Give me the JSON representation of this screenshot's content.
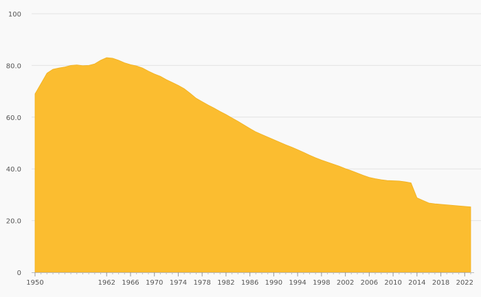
{
  "chart_data": {
    "type": "area",
    "title": "",
    "xlabel": "",
    "ylabel": "",
    "color": "#fbbd30",
    "grid": true,
    "legend": "none",
    "xlim": [
      1950,
      2023
    ],
    "ylim": [
      0,
      100
    ],
    "x_ticks": [
      1950,
      1962,
      1966,
      1970,
      1974,
      1978,
      1982,
      1986,
      1990,
      1994,
      1998,
      2002,
      2006,
      2010,
      2014,
      2018,
      2022
    ],
    "y_ticks": [
      {
        "value": 0,
        "label": "0"
      },
      {
        "value": 20,
        "label": "20.0"
      },
      {
        "value": 40,
        "label": "40.0"
      },
      {
        "value": 60,
        "label": "60.0"
      },
      {
        "value": 80,
        "label": "80.0"
      },
      {
        "value": 100,
        "label": "100"
      }
    ],
    "series": [
      {
        "x": [
          1950,
          1951,
          1952,
          1953,
          1954,
          1955,
          1956,
          1957,
          1958,
          1959,
          1960,
          1961,
          1962,
          1963,
          1964,
          1965,
          1966,
          1967,
          1968,
          1969,
          1970,
          1971,
          1972,
          1973,
          1974,
          1975,
          1976,
          1977,
          1978,
          1979,
          1980,
          1981,
          1982,
          1983,
          1984,
          1985,
          1986,
          1987,
          1988,
          1989,
          1990,
          1991,
          1992,
          1993,
          1994,
          1995,
          1996,
          1997,
          1998,
          1999,
          2000,
          2001,
          2002,
          2003,
          2004,
          2005,
          2006,
          2007,
          2008,
          2009,
          2010,
          2011,
          2012,
          2013,
          2014,
          2015,
          2016,
          2017,
          2018,
          2019,
          2020,
          2021,
          2022,
          2023
        ],
        "y": [
          69.0,
          73.0,
          77.0,
          78.5,
          79.0,
          79.4,
          80.0,
          80.2,
          79.9,
          80.0,
          80.6,
          82.0,
          83.0,
          82.8,
          82.0,
          81.0,
          80.3,
          79.8,
          79.0,
          77.8,
          76.7,
          75.8,
          74.5,
          73.4,
          72.3,
          71.0,
          69.2,
          67.3,
          66.0,
          64.7,
          63.5,
          62.2,
          61.0,
          59.7,
          58.4,
          57.0,
          55.6,
          54.3,
          53.3,
          52.3,
          51.3,
          50.3,
          49.3,
          48.4,
          47.4,
          46.4,
          45.3,
          44.3,
          43.4,
          42.6,
          41.8,
          41.0,
          40.1,
          39.3,
          38.4,
          37.5,
          36.7,
          36.2,
          35.8,
          35.5,
          35.4,
          35.3,
          35.0,
          34.6,
          28.8,
          27.8,
          26.8,
          26.5,
          26.3,
          26.1,
          25.9,
          25.7,
          25.5,
          25.3
        ]
      }
    ]
  }
}
